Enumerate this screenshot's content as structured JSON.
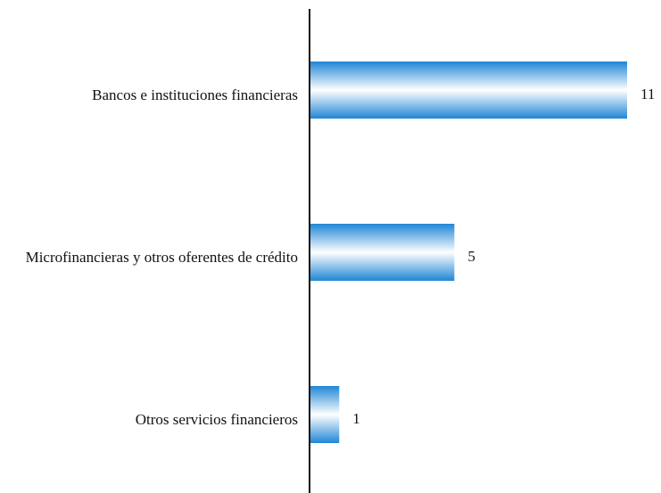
{
  "chart_data": {
    "type": "bar",
    "orientation": "horizontal",
    "categories": [
      "Bancos e instituciones financieras",
      "Microfinancieras y otros oferentes de crédito",
      "Otros servicios financieros"
    ],
    "values": [
      11,
      5,
      1
    ],
    "color": "#1f86d6"
  }
}
